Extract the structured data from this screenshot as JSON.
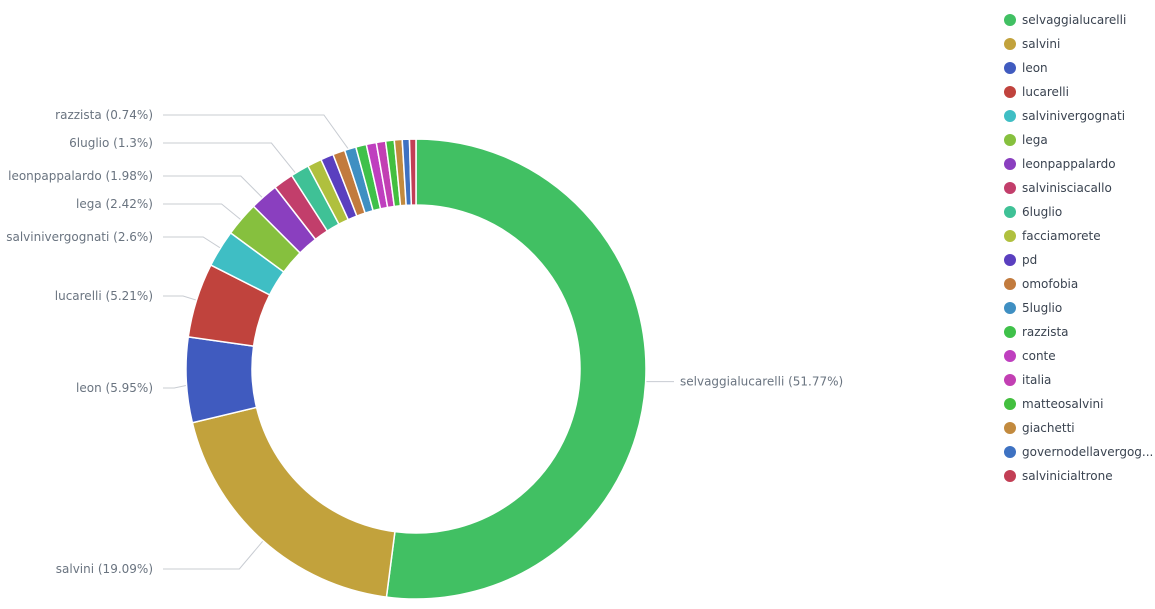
{
  "chart_data": {
    "type": "pie",
    "donut": true,
    "categories": [
      "selvaggialucarelli",
      "salvini",
      "leon",
      "lucarelli",
      "salvinivergognati",
      "lega",
      "leonpappalardo",
      "salvinisciacallo",
      "6luglio",
      "facciamorete",
      "pd",
      "omofobia",
      "5luglio",
      "razzista",
      "conte",
      "italia",
      "matteosalvini",
      "giachetti",
      "governodellavergog...",
      "salvinicialtrone"
    ],
    "values": [
      51.77,
      19.09,
      5.95,
      5.21,
      2.6,
      2.42,
      1.98,
      1.4,
      1.3,
      1.0,
      0.9,
      0.85,
      0.8,
      0.74,
      0.7,
      0.65,
      0.6,
      0.55,
      0.5,
      0.45
    ],
    "colors": [
      "#41c063",
      "#c2a23c",
      "#405bbf",
      "#c0433d",
      "#3fbec4",
      "#86c03e",
      "#8a3fbf",
      "#c23e6b",
      "#3fc196",
      "#b0c03e",
      "#5a3fbf",
      "#c27b3e",
      "#3f8fc2",
      "#3fc14a",
      "#bf3fbf",
      "#c23fb3",
      "#43bf3f",
      "#c28a3e",
      "#3e72c2",
      "#c23e55"
    ],
    "callouts": [
      {
        "index": 0,
        "text": "selvaggialucarelli (51.77%)"
      },
      {
        "index": 1,
        "text": "salvini (19.09%)"
      },
      {
        "index": 2,
        "text": "leon (5.95%)"
      },
      {
        "index": 3,
        "text": "lucarelli (5.21%)"
      },
      {
        "index": 4,
        "text": "salvinivergognati (2.6%)"
      },
      {
        "index": 5,
        "text": "lega (2.42%)"
      },
      {
        "index": 6,
        "text": "leonpappalardo (1.98%)"
      },
      {
        "index": 8,
        "text": "6luglio (1.3%)"
      },
      {
        "index": 13,
        "text": "razzista (0.74%)"
      }
    ],
    "legend_position": "right"
  }
}
